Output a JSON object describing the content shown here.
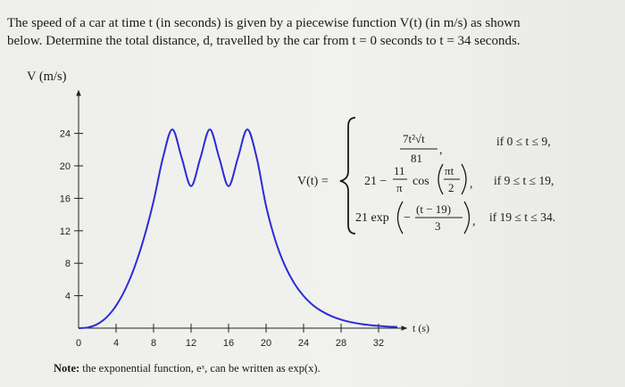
{
  "problem": {
    "line1": "The speed of a car at time t (in seconds) is given by a piecewise function V(t) (in m/s) as shown",
    "line2": "below. Determine the total distance, d, travelled by the car from t = 0 seconds to t = 34 seconds."
  },
  "formula": {
    "lhs": "V(t) =",
    "case1_num": "7t²√t",
    "case1_den": "81",
    "case1_comma": ",",
    "case1_cond": "if 0 ≤ t ≤ 9,",
    "case2_prefix": "21 −",
    "case2_num": "11",
    "case2_den": "π",
    "case2_cos": "cos",
    "case2_inner_num": "πt",
    "case2_inner_den": "2",
    "case2_comma": ",",
    "case2_cond": "if 9 ≤ t ≤ 19,",
    "case3_prefix": "21 exp",
    "case3_minus": "−",
    "case3_inner_num": "(t − 19)",
    "case3_inner_den": "3",
    "case3_comma": ",",
    "case3_cond": "if 19 ≤ t ≤ 34."
  },
  "note": {
    "label": "Note:",
    "text": " the exponential function, eˣ, can be written as exp(x)."
  },
  "chart_data": {
    "type": "line",
    "title": "",
    "xlabel": "t (s)",
    "ylabel": "V (m/s)",
    "xlim": [
      0,
      34
    ],
    "ylim": [
      0,
      24
    ],
    "xticks": [
      0,
      4,
      8,
      12,
      16,
      20,
      24,
      28,
      32
    ],
    "yticks": [
      4,
      8,
      12,
      16,
      20,
      24
    ],
    "grid": false,
    "series": [
      {
        "x": [
          0,
          1,
          2,
          3,
          4,
          5,
          6,
          7,
          8,
          9,
          10,
          11,
          12,
          13,
          14,
          15,
          16,
          17,
          18,
          19,
          20,
          21,
          22,
          23,
          24,
          25,
          26,
          27,
          28,
          29,
          30,
          31,
          32,
          33,
          34
        ],
        "values": [
          0,
          0.09,
          0.49,
          1.35,
          2.77,
          4.83,
          7.62,
          11.21,
          15.64,
          21.0,
          24.5,
          21.0,
          17.5,
          21.0,
          24.5,
          21.0,
          17.5,
          21.0,
          24.5,
          21.0,
          15.05,
          10.78,
          7.73,
          5.54,
          3.97,
          2.84,
          2.04,
          1.46,
          1.05,
          0.75,
          0.54,
          0.38,
          0.28,
          0.2,
          0.14
        ],
        "color": "#2b2bd6"
      }
    ]
  }
}
